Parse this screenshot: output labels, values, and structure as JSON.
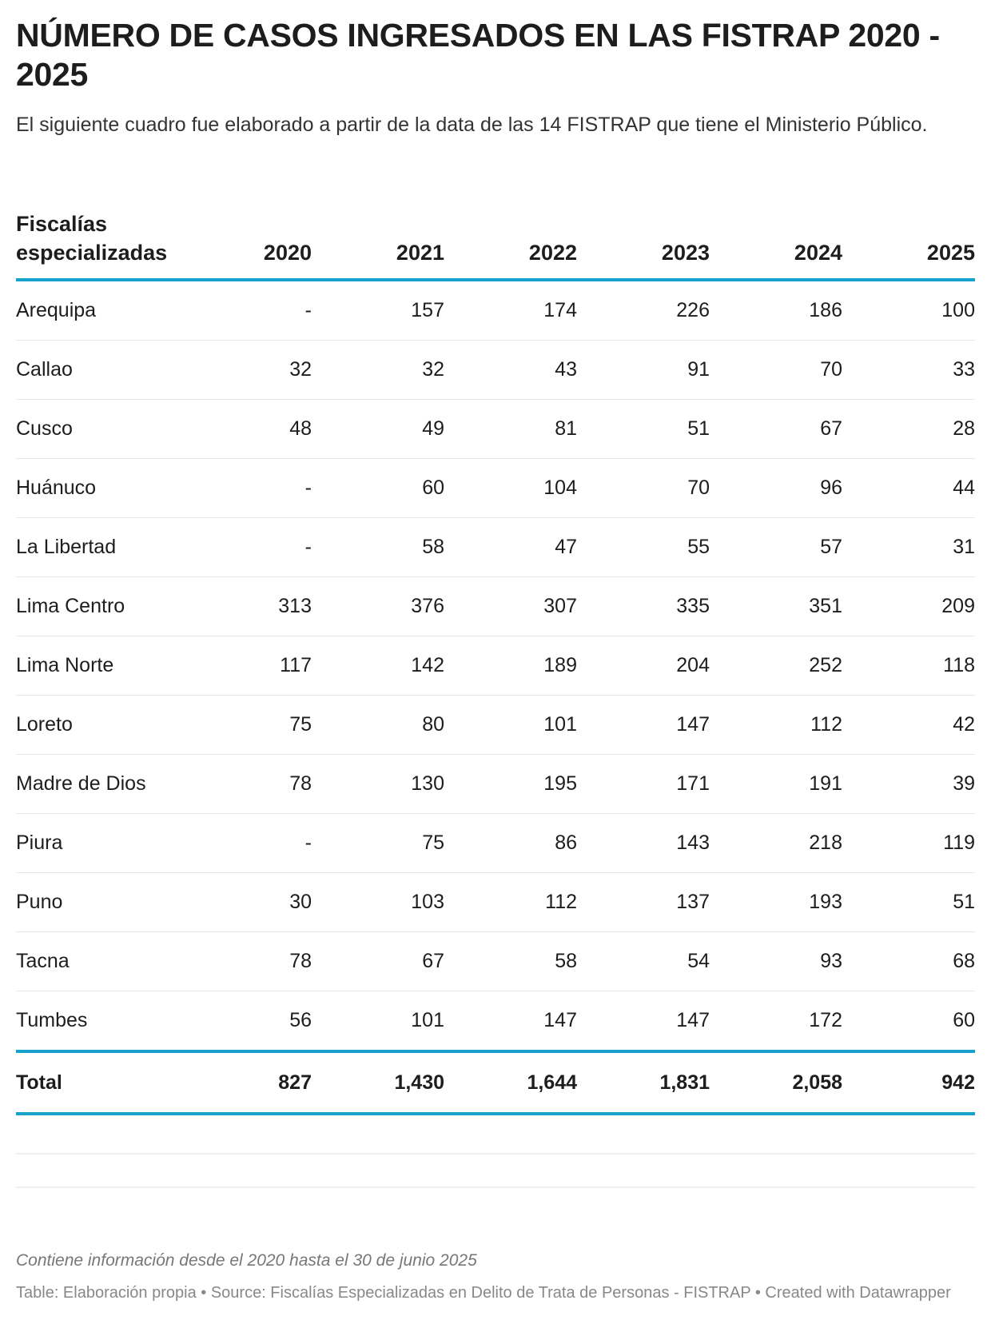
{
  "title": "NÚMERO DE CASOS INGRESADOS EN LAS FISTRAP 2020 - 2025",
  "subtitle": "El siguiente cuadro fue elaborado a partir de la data de las 14 FISTRAP que tiene el Ministerio Público.",
  "colors": {
    "accent": "#18a1cd",
    "text": "#1d1d1d",
    "footer": "#888888"
  },
  "table": {
    "headers": [
      "Fiscalías especializadas",
      "2020",
      "2021",
      "2022",
      "2023",
      "2024",
      "2025"
    ],
    "rows": [
      [
        "Arequipa",
        "-",
        "157",
        "174",
        "226",
        "186",
        "100"
      ],
      [
        "Callao",
        "32",
        "32",
        "43",
        "91",
        "70",
        "33"
      ],
      [
        "Cusco",
        "48",
        "49",
        "81",
        "51",
        "67",
        "28"
      ],
      [
        "Huánuco",
        "-",
        "60",
        "104",
        "70",
        "96",
        "44"
      ],
      [
        "La Libertad",
        "-",
        "58",
        "47",
        "55",
        "57",
        "31"
      ],
      [
        "Lima Centro",
        "313",
        "376",
        "307",
        "335",
        "351",
        "209"
      ],
      [
        "Lima Norte",
        "117",
        "142",
        "189",
        "204",
        "252",
        "118"
      ],
      [
        "Loreto",
        "75",
        "80",
        "101",
        "147",
        "112",
        "42"
      ],
      [
        "Madre de Dios",
        "78",
        "130",
        "195",
        "171",
        "191",
        "39"
      ],
      [
        "Piura",
        "-",
        "75",
        "86",
        "143",
        "218",
        "119"
      ],
      [
        "Puno",
        "30",
        "103",
        "112",
        "137",
        "193",
        "51"
      ],
      [
        "Tacna",
        "78",
        "67",
        "58",
        "54",
        "93",
        "68"
      ],
      [
        "Tumbes",
        "56",
        "101",
        "147",
        "147",
        "172",
        "60"
      ]
    ],
    "total": [
      "Total",
      "827",
      "1,430",
      "1,644",
      "1,831",
      "2,058",
      "942"
    ]
  },
  "footer": {
    "note": "Contiene información desde el 2020 hasta el 30 de junio 2025",
    "source": "Table: Elaboración propia  • Source: Fiscalías Especializadas en Delito de Trata de Personas - FISTRAP • Created with Datawrapper"
  }
}
